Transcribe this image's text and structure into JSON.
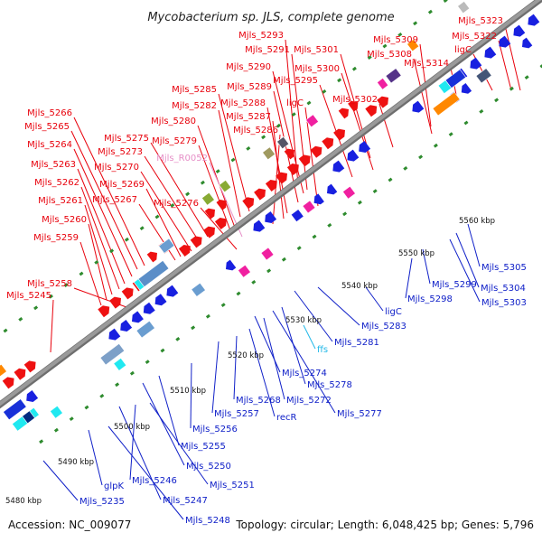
{
  "title": "Mycobacterium sp. JLS, complete genome",
  "footer": {
    "accession": "Accession: NC_009077",
    "info": "Topology: circular; Length: 6,048,425 bp; Genes: 5,796"
  },
  "colors": {
    "forward_label": "#e8000b",
    "reverse_label": "#1020c8",
    "rna_label": "#e690c8",
    "ncrna_label": "#20b8e8",
    "backbone": "#9a9a9a",
    "tick": "#2e8b2e"
  },
  "scale_labels": [
    "5480 kbp",
    "5490 kbp",
    "5500 kbp",
    "5510 kbp",
    "5520 kbp",
    "5530 kbp",
    "5540 kbp",
    "5550 kbp",
    "5560 kbp"
  ],
  "forward_labels": [
    "Mjls_5323",
    "Mjls_5322",
    "ligC",
    "Mjls_5314",
    "Mjls_5309",
    "Mjls_5308",
    "Mjls_5302",
    "Mjls_5301",
    "Mjls_5300",
    "Mjls_5295",
    "Mjls_5293",
    "Mjls_5291",
    "Mjls_5290",
    "Mjls_5289",
    "ligC",
    "Mjls_5288",
    "Mjls_5287",
    "Mjls_5286",
    "Mjls_5285",
    "Mjls_5282",
    "Mjls_5280",
    "Mjls_5279",
    "Mjls_R0052",
    "Mjls_5276",
    "Mjls_5275",
    "Mjls_5273",
    "Mjls_5270",
    "Mjls_5269",
    "Mjls_5267",
    "Mjls_5266",
    "Mjls_5265",
    "Mjls_5264",
    "Mjls_5263",
    "Mjls_5262",
    "Mjls_5261",
    "Mjls_5260",
    "Mjls_5259",
    "Mjls_5258",
    "Mjls_5245"
  ],
  "reverse_labels": [
    "Mjls_5305",
    "Mjls_5304",
    "Mjls_5303",
    "Mjls_5299",
    "Mjls_5298",
    "ligC",
    "Mjls_5283",
    "Mjls_5281",
    "ffs",
    "Mjls_5278",
    "Mjls_5277",
    "Mjls_5274",
    "Mjls_5272",
    "recR",
    "Mjls_5268",
    "Mjls_5257",
    "Mjls_5256",
    "Mjls_5255",
    "Mjls_5250",
    "Mjls_5251",
    "Mjls_5246",
    "Mjls_5247",
    "Mjls_5248",
    "glpK",
    "Mjls_5235"
  ]
}
